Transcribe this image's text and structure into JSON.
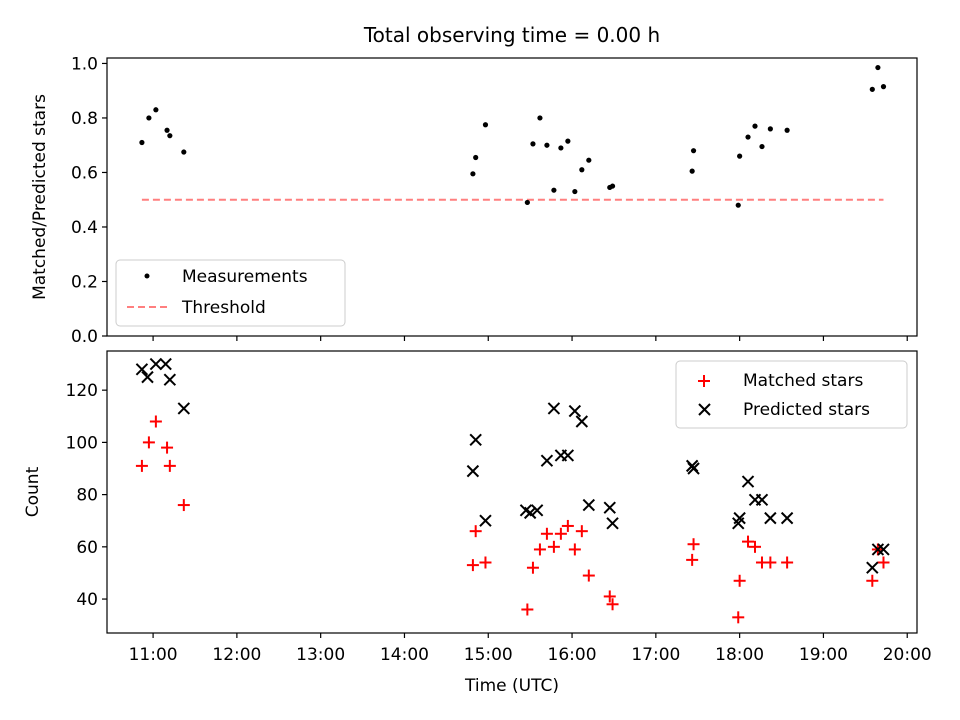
{
  "chart_data": [
    {
      "type": "scatter",
      "title": "Total observing time = 0.00 h",
      "xlabel": "",
      "ylabel": "Matched/Predicted stars",
      "ylim": [
        0,
        1.02
      ],
      "yticks": [
        "0.0",
        "0.2",
        "0.4",
        "0.6",
        "0.8",
        "1.0"
      ],
      "legend_position": "lower-left",
      "series": [
        {
          "name": "Measurements",
          "marker": "dot",
          "color": "#000000",
          "x": [
            "10:52",
            "10:57",
            "11:02",
            "11:10",
            "11:12",
            "11:22",
            "14:49",
            "14:51",
            "14:58",
            "15:28",
            "15:32",
            "15:37",
            "15:42",
            "15:47",
            "15:52",
            "15:57",
            "16:02",
            "16:07",
            "16:12",
            "16:27",
            "16:29",
            "17:26",
            "17:27",
            "17:59",
            "18:00",
            "18:06",
            "18:11",
            "18:16",
            "18:22",
            "18:34",
            "19:35",
            "19:39",
            "19:43"
          ],
          "y": [
            0.71,
            0.8,
            0.83,
            0.755,
            0.735,
            0.675,
            0.595,
            0.655,
            0.775,
            0.49,
            0.705,
            0.8,
            0.7,
            0.535,
            0.69,
            0.715,
            0.53,
            0.61,
            0.645,
            0.545,
            0.55,
            0.605,
            0.68,
            0.48,
            0.66,
            0.73,
            0.77,
            0.695,
            0.76,
            0.755,
            0.905,
            0.985,
            0.915
          ]
        },
        {
          "name": "Threshold",
          "style": "dashed",
          "color": "#ff7f7f",
          "x": [
            "10:52",
            "19:43"
          ],
          "y": [
            0.5,
            0.5
          ]
        }
      ]
    },
    {
      "type": "scatter",
      "title": "",
      "xlabel": "Time (UTC)",
      "ylabel": "Count",
      "ylim": [
        27,
        135
      ],
      "yticks": [
        "40",
        "60",
        "80",
        "100",
        "120"
      ],
      "xticks": [
        "11:00",
        "12:00",
        "13:00",
        "14:00",
        "15:00",
        "16:00",
        "17:00",
        "18:00",
        "19:00",
        "20:00"
      ],
      "legend_position": "upper-right",
      "series": [
        {
          "name": "Matched stars",
          "marker": "plus",
          "color": "#ff0000",
          "x": [
            "10:52",
            "10:57",
            "11:02",
            "11:10",
            "11:12",
            "11:22",
            "14:49",
            "14:51",
            "14:58",
            "15:28",
            "15:32",
            "15:37",
            "15:42",
            "15:47",
            "15:52",
            "15:57",
            "16:02",
            "16:07",
            "16:12",
            "16:27",
            "16:29",
            "17:26",
            "17:27",
            "17:59",
            "18:00",
            "18:06",
            "18:11",
            "18:16",
            "18:22",
            "18:34",
            "19:35",
            "19:39",
            "19:43"
          ],
          "y": [
            91,
            100,
            108,
            98,
            91,
            76,
            53,
            66,
            54,
            36,
            52,
            59,
            65,
            60,
            65,
            68,
            59,
            66,
            49,
            41,
            38,
            55,
            61,
            33,
            47,
            62,
            60,
            54,
            54,
            54,
            47,
            59,
            54
          ]
        },
        {
          "name": "Predicted stars",
          "marker": "x",
          "color": "#000000",
          "x": [
            "10:52",
            "10:56",
            "11:02",
            "11:09",
            "11:12",
            "11:22",
            "14:49",
            "14:51",
            "14:58",
            "15:27",
            "15:30",
            "15:35",
            "15:42",
            "15:47",
            "15:52",
            "15:57",
            "16:02",
            "16:07",
            "16:12",
            "16:27",
            "16:29",
            "17:26",
            "17:27",
            "17:59",
            "18:00",
            "18:06",
            "18:11",
            "18:16",
            "18:22",
            "18:34",
            "19:35",
            "19:39",
            "19:43"
          ],
          "y": [
            128,
            125,
            130,
            130,
            124,
            113,
            89,
            101,
            70,
            74,
            73,
            74,
            93,
            113,
            95,
            95,
            112,
            108,
            76,
            75,
            69,
            91,
            90,
            69,
            71,
            85,
            78,
            78,
            71,
            71,
            52,
            59,
            59
          ]
        }
      ]
    }
  ]
}
